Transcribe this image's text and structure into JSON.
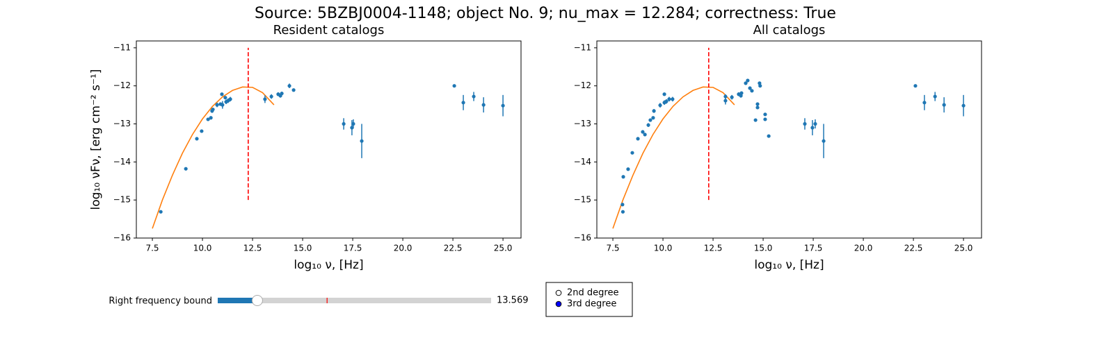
{
  "title": "Source: 5BZBJ0004-1148; object No. 9; nu_max = 12.284; correctness: True",
  "chart_data": [
    {
      "type": "scatter",
      "title": "Resident catalogs",
      "xlabel": "log₁₀ ν, [Hz]",
      "ylabel": "log₁₀ νFν, [erg cm⁻² s⁻¹]",
      "xlim": [
        6.7,
        25.9
      ],
      "ylim": [
        -16,
        -10.82
      ],
      "xticks": [
        7.5,
        {
          "value": 10,
          "label": "10.0"
        },
        12.5,
        {
          "value": 15,
          "label": "15.0"
        },
        17.5,
        {
          "value": 20,
          "label": "20.0"
        },
        22.5,
        {
          "value": 25,
          "label": "25.0"
        }
      ],
      "yticks": [
        {
          "value": -16,
          "label": "−16"
        },
        {
          "value": -15,
          "label": "−15"
        },
        {
          "value": -14,
          "label": "−14"
        },
        {
          "value": -13,
          "label": "−13"
        },
        {
          "value": -12,
          "label": "−12"
        },
        {
          "value": -11,
          "label": "−11"
        }
      ],
      "points": {
        "color": "#1f77b4",
        "x": [
          7.92,
          9.17,
          9.72,
          9.96,
          10.28,
          10.42,
          10.48,
          10.52,
          10.73,
          10.9,
          10.97,
          11.0,
          11.14,
          11.18,
          11.28,
          11.39,
          13.12,
          13.44,
          13.78,
          13.89,
          13.96,
          14.34,
          14.55,
          17.05,
          17.46,
          17.53,
          17.95,
          22.57,
          23.02,
          23.54,
          24.03,
          25.0
        ],
        "y": [
          -15.31,
          -14.18,
          -13.39,
          -13.19,
          -12.88,
          -12.84,
          -12.66,
          -12.62,
          -12.5,
          -12.48,
          -12.22,
          -12.5,
          -12.31,
          -12.42,
          -12.39,
          -12.35,
          -12.35,
          -12.28,
          -12.22,
          -12.26,
          -12.2,
          -12.0,
          -12.11,
          -13.0,
          -13.1,
          -13.0,
          -13.45,
          -12.0,
          -12.44,
          -12.28,
          -12.5,
          -12.52
        ],
        "yerr": [
          0.04,
          0,
          0,
          0,
          0,
          0,
          0.05,
          0,
          0.06,
          0,
          0,
          0.1,
          0,
          0.06,
          0.06,
          0.06,
          0.1,
          0.06,
          0.05,
          0.05,
          0,
          0.06,
          0,
          0.15,
          0.2,
          0.12,
          0.45,
          0,
          0.2,
          0.12,
          0.2,
          0.28
        ]
      },
      "fit": {
        "color": "#ff7f0e",
        "x": [
          7.5,
          8,
          8.5,
          9,
          9.5,
          10,
          10.5,
          11,
          11.5,
          12,
          12.5,
          13,
          13.57
        ],
        "y": [
          -15.75,
          -15.0,
          -14.35,
          -13.77,
          -13.28,
          -12.87,
          -12.54,
          -12.29,
          -12.12,
          -12.03,
          -12.04,
          -12.18,
          -12.5
        ]
      },
      "vline": {
        "x": 12.284,
        "ymin": -15,
        "ymax": -11,
        "color": "#ff0000"
      }
    },
    {
      "type": "scatter",
      "title": "All catalogs",
      "xlabel": "log₁₀ ν, [Hz]",
      "xlim": [
        6.7,
        25.9
      ],
      "ylim": [
        -16,
        -10.82
      ],
      "xticks": [
        7.5,
        {
          "value": 10,
          "label": "10.0"
        },
        12.5,
        {
          "value": 15,
          "label": "15.0"
        },
        17.5,
        {
          "value": 20,
          "label": "20.0"
        },
        22.5,
        {
          "value": 25,
          "label": "25.0"
        }
      ],
      "yticks": [
        {
          "value": -16,
          "label": "−16"
        },
        {
          "value": -15,
          "label": "−15"
        },
        {
          "value": -14,
          "label": "−14"
        },
        {
          "value": -13,
          "label": "−13"
        },
        {
          "value": -12,
          "label": "−12"
        },
        {
          "value": -11,
          "label": "−11"
        }
      ],
      "points": {
        "color": "#1f77b4",
        "x": [
          7.98,
          8.0,
          8.02,
          8.26,
          8.47,
          8.75,
          8.99,
          9.1,
          9.27,
          9.37,
          9.51,
          9.55,
          9.86,
          10.07,
          10.07,
          10.17,
          10.31,
          10.48,
          13.12,
          13.12,
          13.44,
          13.78,
          13.89,
          13.92,
          14.13,
          14.23,
          14.34,
          14.44,
          14.62,
          14.72,
          14.72,
          14.82,
          14.85,
          15.1,
          15.1,
          15.28,
          17.08,
          17.46,
          17.6,
          18.02,
          22.6,
          23.05,
          23.58,
          24.03,
          25.0
        ],
        "y": [
          -15.12,
          -15.31,
          -14.39,
          -14.19,
          -13.76,
          -13.39,
          -13.21,
          -13.28,
          -13.03,
          -12.9,
          -12.84,
          -12.66,
          -12.51,
          -12.44,
          -12.22,
          -12.41,
          -12.35,
          -12.35,
          -12.28,
          -12.39,
          -12.3,
          -12.22,
          -12.26,
          -12.19,
          -11.93,
          -11.86,
          -12.06,
          -12.13,
          -12.9,
          -12.48,
          -12.57,
          -11.93,
          -12.0,
          -12.75,
          -12.88,
          -13.32,
          -13.0,
          -13.1,
          -13.0,
          -13.45,
          -12.0,
          -12.44,
          -12.28,
          -12.5,
          -12.52
        ],
        "yerr": [
          0,
          0.04,
          0,
          0,
          0,
          0,
          0,
          0,
          0.05,
          0,
          0,
          0.05,
          0.06,
          0.06,
          0,
          0.06,
          0.06,
          0.06,
          0.06,
          0.1,
          0.06,
          0.05,
          0.05,
          0,
          0,
          0,
          0,
          0,
          0,
          0,
          0,
          0,
          0,
          0,
          0,
          0,
          0.15,
          0.2,
          0.12,
          0.45,
          0,
          0.2,
          0.12,
          0.2,
          0.28
        ]
      },
      "fit": {
        "color": "#ff7f0e",
        "x": [
          7.5,
          8,
          8.5,
          9,
          9.5,
          10,
          10.5,
          11,
          11.5,
          12,
          12.5,
          13,
          13.57
        ],
        "y": [
          -15.75,
          -15.0,
          -14.35,
          -13.77,
          -13.28,
          -12.87,
          -12.54,
          -12.29,
          -12.12,
          -12.03,
          -12.04,
          -12.18,
          -12.5
        ]
      },
      "vline": {
        "x": 12.284,
        "ymin": -15,
        "ymax": -11,
        "color": "#ff0000"
      }
    }
  ],
  "slider": {
    "label": "Right frequency bound",
    "value": 13.569,
    "min": 12.7,
    "max": 18.7,
    "init": 15.1
  },
  "radio": {
    "options": [
      "2nd degree",
      "3rd degree"
    ],
    "selected": 1
  }
}
